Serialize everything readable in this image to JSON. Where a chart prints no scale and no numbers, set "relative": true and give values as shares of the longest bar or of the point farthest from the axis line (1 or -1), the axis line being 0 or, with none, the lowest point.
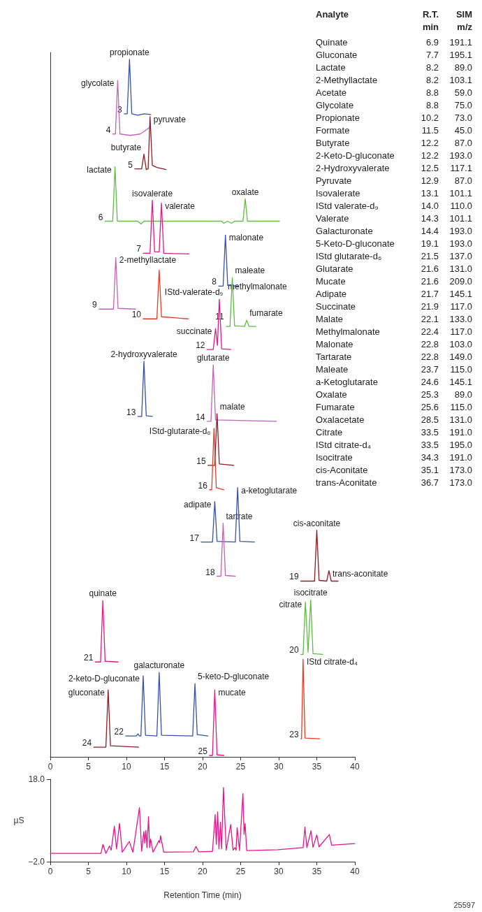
{
  "chart_data": [
    {
      "type": "line",
      "relative": true,
      "marker": "none",
      "xlim": [
        0,
        40
      ],
      "xticks": [
        0,
        5,
        10,
        15,
        20,
        25,
        30,
        35,
        40
      ],
      "tick_labels": "x",
      "series": [
        {
          "name": "3",
          "color": "#3552a8",
          "x": [
            9.7,
            10.1,
            10.4,
            10.7,
            11.5,
            12.3,
            13.2
          ],
          "values": [
            0.922,
            0.922,
            1.0,
            0.922,
            0.92,
            0.922,
            0.921
          ]
        },
        {
          "name": "4",
          "color": "#c364b4",
          "x": [
            8.2,
            8.55,
            8.85,
            9.15,
            10.5,
            11.8,
            12.5,
            13.1
          ],
          "values": [
            0.893,
            0.893,
            0.97,
            0.893,
            0.891,
            0.893,
            0.898,
            0.903
          ]
        },
        {
          "name": "5",
          "color": "#8e1c22",
          "x": [
            11.1,
            12.0,
            12.3,
            12.6,
            12.85,
            13.1,
            13.4,
            14.0,
            15.2
          ],
          "values": [
            0.843,
            0.843,
            0.864,
            0.842,
            0.843,
            0.918,
            0.848,
            0.845,
            0.842
          ]
        },
        {
          "name": "6",
          "color": "#5cbf3f",
          "x": [
            7.2,
            8.2,
            8.5,
            8.8,
            11.5,
            11.9,
            12.3,
            22.5,
            22.8,
            23.3,
            23.8,
            24.2,
            25.3,
            25.6,
            25.9,
            30.1
          ],
          "values": [
            0.768,
            0.768,
            0.846,
            0.768,
            0.768,
            0.764,
            0.768,
            0.768,
            0.765,
            0.768,
            0.765,
            0.768,
            0.768,
            0.8,
            0.768,
            0.768
          ]
        },
        {
          "name": "7",
          "color": "#e6168a",
          "x": [
            12.2,
            13.1,
            13.4,
            13.7,
            14.3,
            14.6,
            14.9,
            18.2
          ],
          "values": [
            0.722,
            0.722,
            0.798,
            0.724,
            0.724,
            0.794,
            0.722,
            0.721
          ]
        },
        {
          "name": "8",
          "color": "#3552a8",
          "x": [
            22.1,
            22.7,
            23.0,
            23.3,
            24.6
          ],
          "values": [
            0.675,
            0.675,
            0.748,
            0.676,
            0.675
          ]
        },
        {
          "name": "9",
          "color": "#c364b4",
          "x": [
            6.4,
            8.3,
            8.6,
            8.9,
            11.2
          ],
          "values": [
            0.642,
            0.642,
            0.716,
            0.643,
            0.642
          ]
        },
        {
          "name": "10",
          "color": "#ea3a24",
          "x": [
            12.2,
            14.0,
            14.3,
            14.6,
            18.1
          ],
          "values": [
            0.628,
            0.628,
            0.698,
            0.631,
            0.628
          ]
        },
        {
          "name": "11",
          "color": "#5cbf3f",
          "x": [
            23.1,
            23.6,
            23.9,
            24.2,
            25.5,
            25.8,
            26.1,
            27.0
          ],
          "values": [
            0.617,
            0.617,
            0.687,
            0.618,
            0.617,
            0.626,
            0.617,
            0.617
          ]
        },
        {
          "name": "12",
          "color": "#e6168a",
          "x": [
            20.6,
            21.4,
            21.7,
            21.95,
            22.2,
            22.5,
            23.7
          ],
          "values": [
            0.584,
            0.584,
            0.614,
            0.59,
            0.656,
            0.585,
            0.584
          ]
        },
        {
          "name": "13",
          "color": "#3552a8",
          "x": [
            11.5,
            12.0,
            12.3,
            12.6,
            13.4
          ],
          "values": [
            0.488,
            0.488,
            0.567,
            0.489,
            0.488
          ]
        },
        {
          "name": "14",
          "color": "#c364b4",
          "x": [
            20.6,
            21.1,
            21.4,
            21.7,
            29.7
          ],
          "values": [
            0.481,
            0.481,
            0.562,
            0.483,
            0.481
          ]
        },
        {
          "name": "15",
          "color": "#8e1c22",
          "x": [
            20.7,
            21.6,
            21.9,
            22.2,
            24.1
          ],
          "values": [
            0.418,
            0.418,
            0.492,
            0.42,
            0.418
          ]
        },
        {
          "name": "16",
          "color": "#ea3a24",
          "x": [
            20.9,
            21.2,
            21.5,
            21.8,
            22.8
          ],
          "values": [
            0.383,
            0.383,
            0.471,
            0.386,
            0.383
          ]
        },
        {
          "name": "17",
          "color": "#3552a8",
          "x": [
            19.8,
            21.3,
            21.6,
            21.9,
            24.3,
            24.6,
            24.9,
            26.8
          ],
          "values": [
            0.308,
            0.308,
            0.366,
            0.309,
            0.308,
            0.386,
            0.309,
            0.308
          ]
        },
        {
          "name": "18",
          "color": "#c364b4",
          "x": [
            21.9,
            22.4,
            22.7,
            23.0,
            24.3
          ],
          "values": [
            0.259,
            0.259,
            0.335,
            0.26,
            0.259
          ]
        },
        {
          "name": "19",
          "color": "#8e1c22",
          "x": [
            32.9,
            34.7,
            35.0,
            35.3,
            36.3,
            36.6,
            36.9,
            37.8
          ],
          "values": [
            0.252,
            0.252,
            0.325,
            0.253,
            0.252,
            0.267,
            0.252,
            0.252
          ]
        },
        {
          "name": "20",
          "color": "#5cbf3f",
          "x": [
            32.9,
            33.2,
            33.5,
            33.85,
            34.2,
            34.5,
            35.8
          ],
          "values": [
            0.147,
            0.147,
            0.222,
            0.15,
            0.225,
            0.148,
            0.147
          ]
        },
        {
          "name": "21",
          "color": "#e6168a",
          "x": [
            5.9,
            6.6,
            6.9,
            7.2,
            8.9
          ],
          "values": [
            0.136,
            0.136,
            0.224,
            0.137,
            0.136
          ]
        },
        {
          "name": "22",
          "color": "#3552a8",
          "x": [
            9.9,
            11.3,
            11.5,
            11.7,
            11.9,
            12.2,
            12.5,
            14.0,
            14.3,
            14.6,
            18.7,
            19.0,
            19.3,
            20.7
          ],
          "values": [
            0.03,
            0.03,
            0.033,
            0.03,
            0.03,
            0.116,
            0.031,
            0.03,
            0.121,
            0.031,
            0.03,
            0.105,
            0.032,
            0.03
          ]
        },
        {
          "name": "23",
          "color": "#ea3a24",
          "x": [
            32.9,
            33.0,
            33.2,
            33.45,
            35.4
          ],
          "values": [
            0.026,
            0.026,
            0.14,
            0.027,
            0.026
          ]
        },
        {
          "name": "24",
          "color": "#8e1c22",
          "x": [
            5.7,
            7.3,
            7.6,
            7.9,
            11.6
          ],
          "values": [
            0.014,
            0.014,
            0.096,
            0.016,
            0.014
          ]
        },
        {
          "name": "25",
          "color": "#e6168a",
          "x": [
            20.9,
            21.3,
            21.6,
            21.9,
            22.8
          ],
          "values": [
            0.002,
            0.002,
            0.096,
            0.003,
            0.002
          ]
        }
      ],
      "annotations": [
        {
          "text": "propionate",
          "x": 10.4,
          "y": 1.0
        },
        {
          "text": "glycolate",
          "x": 8.85,
          "y": 0.97
        },
        {
          "text": "pyruvate",
          "x": 13.1,
          "y": 0.918
        },
        {
          "text": "butyrate",
          "x": 12.3,
          "y": 0.864
        },
        {
          "text": "lactate",
          "x": 8.5,
          "y": 0.846
        },
        {
          "text": "isovalerate",
          "x": 13.4,
          "y": 0.798
        },
        {
          "text": "valerate",
          "x": 14.6,
          "y": 0.794
        },
        {
          "text": "oxalate",
          "x": 25.6,
          "y": 0.8
        },
        {
          "text": "malonate",
          "x": 23.0,
          "y": 0.748
        },
        {
          "text": "2-methyllactate",
          "x": 8.6,
          "y": 0.716
        },
        {
          "text": "IStd-valerate-d₉",
          "x": 14.3,
          "y": 0.698
        },
        {
          "text": "maleate",
          "x": 23.9,
          "y": 0.687
        },
        {
          "text": "methylmalonate",
          "x": 22.2,
          "y": 0.656
        },
        {
          "text": "fumarate",
          "x": 25.8,
          "y": 0.626
        },
        {
          "text": "succinate",
          "x": 21.7,
          "y": 0.614
        },
        {
          "text": "2-hydroxyvalerate",
          "x": 12.3,
          "y": 0.567
        },
        {
          "text": "glutarate",
          "x": 21.4,
          "y": 0.562
        },
        {
          "text": "malate",
          "x": 21.9,
          "y": 0.492
        },
        {
          "text": "IStd-glutarate-d₆",
          "x": 21.5,
          "y": 0.471
        },
        {
          "text": "a-ketoglutarate",
          "x": 24.6,
          "y": 0.386
        },
        {
          "text": "adipate",
          "x": 21.6,
          "y": 0.366
        },
        {
          "text": "tartrate",
          "x": 22.7,
          "y": 0.335
        },
        {
          "text": "cis-aconitate",
          "x": 35.0,
          "y": 0.325
        },
        {
          "text": "trans-aconitate",
          "x": 36.6,
          "y": 0.267
        },
        {
          "text": "citrate",
          "x": 33.5,
          "y": 0.222
        },
        {
          "text": "isocitrate",
          "x": 34.2,
          "y": 0.225
        },
        {
          "text": "quinate",
          "x": 6.9,
          "y": 0.224
        },
        {
          "text": "IStd citrate-d₄",
          "x": 33.2,
          "y": 0.14
        },
        {
          "text": "2-keto-D-gluconate",
          "x": 12.2,
          "y": 0.116
        },
        {
          "text": "galacturonate",
          "x": 14.3,
          "y": 0.121
        },
        {
          "text": "5-keto-D-gluconate",
          "x": 19.0,
          "y": 0.105
        },
        {
          "text": "gluconate",
          "x": 7.6,
          "y": 0.096
        },
        {
          "text": "mucate",
          "x": 21.6,
          "y": 0.096
        }
      ]
    },
    {
      "type": "line",
      "marker": "none",
      "xlabel": "Retention Time (min)",
      "ylabel": "µS",
      "xlim": [
        0,
        40
      ],
      "xticks": [
        0,
        5,
        10,
        15,
        20,
        25,
        30,
        35,
        40
      ],
      "ylim": [
        -2,
        18
      ],
      "yticks": [
        {
          "value": -2,
          "label": "−2.0"
        },
        {
          "value": 18,
          "label": "18.0"
        }
      ],
      "series": [
        {
          "color": "#e6168a",
          "x": [
            0,
            6.65,
            6.92,
            7.3,
            7.77,
            8.0,
            8.41,
            8.7,
            9.09,
            9.45,
            10.37,
            10.85,
            11.71,
            12.0,
            12.29,
            12.42,
            12.56,
            12.7,
            12.9,
            13.05,
            13.17,
            13.5,
            14.27,
            14.37,
            14.48,
            14.9,
            18.8,
            19.12,
            19.5,
            21.3,
            21.65,
            21.8,
            21.98,
            22.15,
            22.35,
            22.5,
            22.74,
            23.1,
            23.69,
            24.0,
            24.25,
            24.4,
            24.54,
            24.85,
            25.3,
            25.45,
            25.58,
            25.8,
            29.9,
            33.2,
            33.44,
            33.7,
            34.24,
            34.5,
            35.0,
            35.3,
            36.65,
            36.95,
            40
          ],
          "values": [
            0,
            0,
            2.2,
            0,
            1.8,
            0.8,
            6.6,
            1.1,
            7.3,
            0.3,
            2.9,
            0.3,
            11.1,
            0.5,
            5.3,
            2.5,
            5.6,
            1.4,
            8.9,
            1.4,
            3.5,
            0.3,
            3.1,
            2.6,
            4.3,
            0.3,
            0.4,
            1.7,
            0.4,
            0.5,
            9.4,
            2.2,
            10.1,
            1.1,
            7.6,
            1.1,
            16.0,
            0.8,
            7.0,
            0.8,
            1.4,
            0.8,
            6.3,
            0.7,
            14.5,
            4.6,
            7.3,
            0.7,
            0.9,
            1.4,
            6.4,
            1.4,
            5.5,
            1.5,
            4.5,
            1.6,
            4.6,
            2.0,
            2.4
          ]
        }
      ],
      "annotations": [
        "25597"
      ]
    },
    {
      "type": "other",
      "title": "Analyte",
      "categories": [
        "Quinate",
        "Gluconate",
        "Lactate",
        "2-Methyllactate",
        "Acetate",
        "Glycolate",
        "Propionate",
        "Formate",
        "Butyrate",
        "2-Keto-D-gluconate",
        "2-Hydroxyvalerate",
        "Pyruvate",
        "Isovalerate",
        "IStd valerate-d₉",
        "Valerate",
        "Galacturonate",
        "5-Keto-D-gluconate",
        "IStd glutarate-d₆",
        "Glutarate",
        "Mucate",
        "Adipate",
        "Succinate",
        "Malate",
        "Methylmalonate",
        "Malonate",
        "Tartarate",
        "Maleate",
        "a-Ketoglutarate",
        "Oxalate",
        "Fumarate",
        "Oxalacetate",
        "Citrate",
        "IStd citrate-d₄",
        "Isocitrate",
        "cis-Aconitate",
        "trans-Aconitate"
      ],
      "series": [
        {
          "name": "R.T. min",
          "values": [
            6.9,
            7.7,
            8.2,
            8.2,
            8.8,
            8.8,
            10.2,
            11.5,
            12.2,
            12.2,
            12.5,
            12.9,
            13.1,
            14.0,
            14.3,
            14.4,
            19.1,
            21.5,
            21.6,
            21.6,
            21.7,
            21.9,
            22.1,
            22.4,
            22.8,
            22.8,
            23.7,
            24.6,
            25.3,
            25.6,
            28.5,
            33.5,
            33.5,
            34.3,
            35.1,
            36.7
          ],
          "value_labels": [
            "6.9",
            "7.7",
            "8.2",
            "8.2",
            "8.8",
            "8.8",
            "10.2",
            "11.5",
            "12.2",
            "12.2",
            "12.5",
            "12.9",
            "13.1",
            "14.0",
            "14.3",
            "14.4",
            "19.1",
            "21.5",
            "21.6",
            "21.6",
            "21.7",
            "21.9",
            "22.1",
            "22.4",
            "22.8",
            "22.8",
            "23.7",
            "24.6",
            "25.3",
            "25.6",
            "28.5",
            "33.5",
            "33.5",
            "34.3",
            "35.1",
            "36.7"
          ]
        },
        {
          "name": "SIM m/z",
          "values": [
            191.1,
            195.1,
            89.0,
            103.1,
            59.0,
            75.0,
            73.0,
            45.0,
            87.0,
            193.0,
            117.1,
            87.0,
            101.1,
            110.0,
            101.1,
            193.0,
            193.0,
            137.0,
            131.0,
            209.0,
            145.1,
            117.0,
            133.0,
            117.0,
            103.0,
            149.0,
            115.0,
            145.1,
            89.0,
            115.0,
            131.0,
            191.0,
            195.0,
            191.0,
            173.0,
            173.0
          ],
          "value_labels": [
            "191.1",
            "195.1",
            "89.0",
            "103.1",
            "59.0",
            "75.0",
            "73.0",
            "45.0",
            "87.0",
            "193.0",
            "117.1",
            "87.0",
            "101.1",
            "110.0",
            "101.1",
            "193.0",
            "193.0",
            "137.0",
            "131.0",
            "209.0",
            "145.1",
            "117.0",
            "133.0",
            "117.0",
            "103.0",
            "149.0",
            "115.0",
            "145.1",
            "89.0",
            "115.0",
            "131.0",
            "191.0",
            "195.0",
            "191.0",
            "173.0",
            "173.0"
          ]
        }
      ]
    }
  ]
}
